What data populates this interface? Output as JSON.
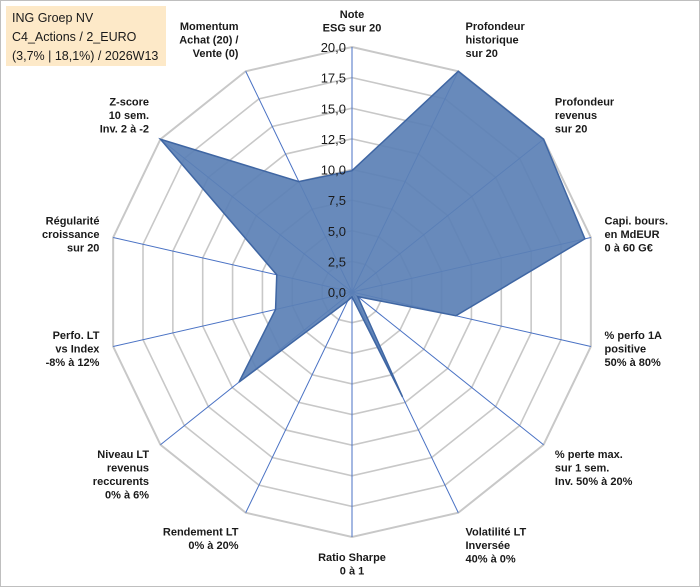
{
  "header": {
    "lines": [
      "ING Groep NV",
      "C4_Actions / 2_EURO",
      "(3,7% | 18,1%) / 2026W13"
    ],
    "background": "#fde9c8"
  },
  "colors": {
    "fill": "#5b80b5",
    "stroke": "#3f66a3",
    "grid": "#c8c8c8",
    "axis": "#4a72c4"
  },
  "chart_data": {
    "type": "radar",
    "title": "ING Groep NV",
    "rmin": 0,
    "rmax": 20,
    "ticks": [
      {
        "value": 0,
        "label": "0,0"
      },
      {
        "value": 2.5,
        "label": "2,5"
      },
      {
        "value": 5,
        "label": "5,0"
      },
      {
        "value": 7.5,
        "label": "7,5"
      },
      {
        "value": 10,
        "label": "10,0"
      },
      {
        "value": 12.5,
        "label": "12,5"
      },
      {
        "value": 15,
        "label": "15,0"
      },
      {
        "value": 17.5,
        "label": "17,5"
      },
      {
        "value": 20,
        "label": "20,0"
      }
    ],
    "axes": [
      {
        "label": [
          "Note",
          "ESG sur 20"
        ],
        "value": 9.9
      },
      {
        "label": [
          "Profondeur",
          "historique",
          "sur 20"
        ],
        "value": 20
      },
      {
        "label": [
          "Profondeur",
          "revenus",
          "sur 20"
        ],
        "value": 20
      },
      {
        "label": [
          "Capi. bours.",
          "en MdEUR",
          "0 à 60 G€"
        ],
        "value": 19.5
      },
      {
        "label": [
          "% perfo 1A",
          "positive",
          "50% à 80%"
        ],
        "value": 8.7
      },
      {
        "label": [
          "% perte max.",
          "sur 1 sem.",
          "Inv. 50% à 20%"
        ],
        "value": 0.6
      },
      {
        "label": [
          "Volatilité LT",
          "Inversée",
          "40% à 0%"
        ],
        "value": 9.5
      },
      {
        "label": [
          "Ratio Sharpe",
          "0 à 1"
        ],
        "value": 0.4
      },
      {
        "label": [
          "Rendement LT",
          "0% à 20%"
        ],
        "value": 0.8
      },
      {
        "label": [
          "Niveau LT",
          "revenus",
          "reccurents",
          "0% à 6%"
        ],
        "value": 11.8
      },
      {
        "label": [
          "Perfo. LT",
          "vs Index",
          "-8% à 12%"
        ],
        "value": 6.4
      },
      {
        "label": [
          "Régularité",
          "croissance",
          "sur 20"
        ],
        "value": 6.3
      },
      {
        "label": [
          "Z-score",
          "10 sem.",
          "Inv. 2 à -2"
        ],
        "value": 20
      },
      {
        "label": [
          "Momentum",
          "Achat (20) /",
          "Vente (0)"
        ],
        "value": 10
      }
    ]
  }
}
